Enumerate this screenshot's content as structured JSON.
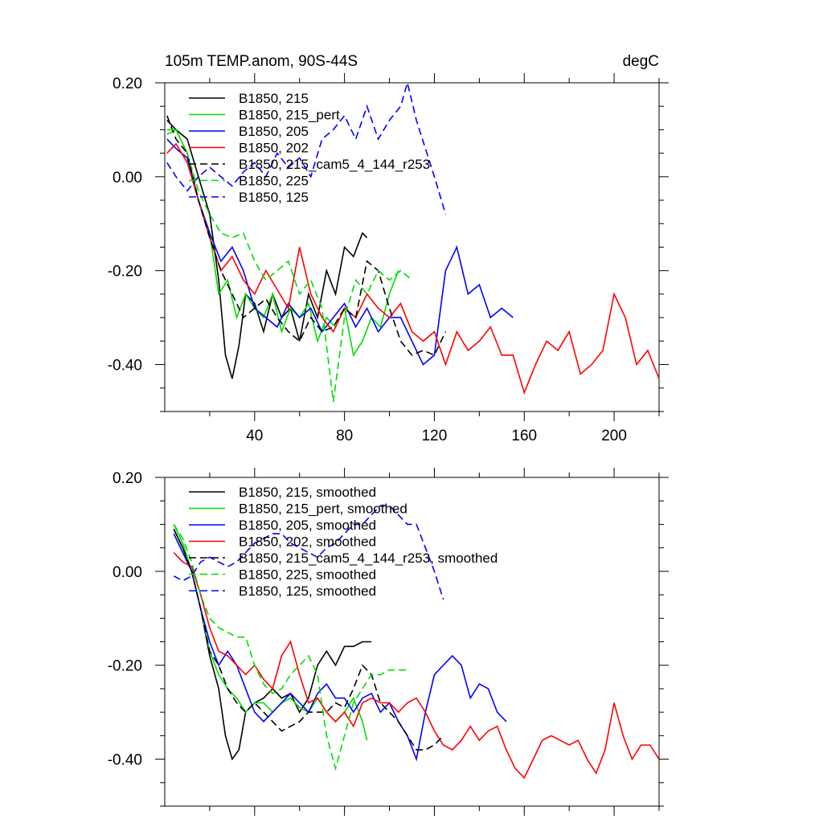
{
  "chart_data": [
    {
      "type": "line",
      "title": "105m TEMP.anom, 90S-44S",
      "units": "degC",
      "xlim": [
        0,
        220
      ],
      "ylim": [
        -0.5,
        0.2
      ],
      "xticks": [
        40,
        80,
        120,
        160,
        200
      ],
      "xtick_labels": [
        "40",
        "80",
        "120",
        "160",
        "200"
      ],
      "yticks": [
        0.2,
        0.0,
        -0.2,
        -0.4
      ],
      "ytick_labels": [
        "0.20",
        "0.00",
        "-0.20",
        "-0.40"
      ],
      "legend_position": "top-left",
      "series": [
        {
          "name": "B1850, 215",
          "color": "#000000",
          "dash": "solid",
          "x": [
            1,
            5,
            10,
            15,
            20,
            24,
            27,
            30,
            33,
            36,
            40,
            44,
            48,
            52,
            56,
            60,
            64,
            68,
            72,
            76,
            80,
            84,
            88,
            90
          ],
          "y": [
            0.12,
            0.1,
            0.08,
            0.0,
            -0.08,
            -0.22,
            -0.38,
            -0.43,
            -0.36,
            -0.25,
            -0.27,
            -0.33,
            -0.25,
            -0.3,
            -0.28,
            -0.35,
            -0.25,
            -0.3,
            -0.2,
            -0.25,
            -0.15,
            -0.17,
            -0.12,
            -0.13
          ]
        },
        {
          "name": "B1850, 215_pert",
          "color": "#00dd00",
          "dash": "solid",
          "x": [
            1,
            5,
            10,
            15,
            20,
            24,
            28,
            32,
            36,
            40,
            44,
            48,
            52,
            56,
            60,
            64,
            68,
            72,
            76,
            80,
            84,
            88,
            92,
            96,
            100,
            104
          ],
          "y": [
            0.09,
            0.1,
            0.05,
            -0.05,
            -0.12,
            -0.25,
            -0.22,
            -0.3,
            -0.25,
            -0.28,
            -0.3,
            -0.25,
            -0.33,
            -0.28,
            -0.3,
            -0.27,
            -0.35,
            -0.3,
            -0.32,
            -0.28,
            -0.38,
            -0.35,
            -0.3,
            -0.32,
            -0.25,
            -0.2
          ]
        },
        {
          "name": "B1850, 205",
          "color": "#0000ff",
          "dash": "solid",
          "x": [
            1,
            5,
            10,
            15,
            20,
            25,
            30,
            35,
            40,
            45,
            50,
            55,
            60,
            65,
            70,
            75,
            80,
            85,
            90,
            95,
            100,
            105,
            110,
            115,
            120,
            125,
            130,
            135,
            140,
            145,
            150,
            155
          ],
          "y": [
            0.08,
            0.06,
            0.04,
            -0.05,
            -0.12,
            -0.18,
            -0.15,
            -0.2,
            -0.28,
            -0.3,
            -0.32,
            -0.27,
            -0.3,
            -0.28,
            -0.33,
            -0.3,
            -0.27,
            -0.32,
            -0.28,
            -0.33,
            -0.3,
            -0.3,
            -0.35,
            -0.4,
            -0.38,
            -0.2,
            -0.15,
            -0.25,
            -0.23,
            -0.3,
            -0.28,
            -0.3
          ]
        },
        {
          "name": "B1850, 202",
          "color": "#ff0000",
          "dash": "solid",
          "x": [
            1,
            5,
            10,
            15,
            20,
            25,
            30,
            35,
            40,
            45,
            50,
            55,
            60,
            65,
            70,
            75,
            80,
            85,
            90,
            95,
            100,
            105,
            110,
            115,
            120,
            125,
            130,
            135,
            140,
            145,
            150,
            155,
            160,
            165,
            170,
            175,
            180,
            185,
            190,
            195,
            200,
            205,
            210,
            215,
            220
          ],
          "y": [
            0.05,
            0.07,
            0.03,
            -0.05,
            -0.13,
            -0.2,
            -0.17,
            -0.22,
            -0.25,
            -0.2,
            -0.24,
            -0.28,
            -0.15,
            -0.25,
            -0.3,
            -0.33,
            -0.28,
            -0.3,
            -0.25,
            -0.28,
            -0.3,
            -0.27,
            -0.33,
            -0.35,
            -0.33,
            -0.4,
            -0.33,
            -0.37,
            -0.35,
            -0.32,
            -0.38,
            -0.38,
            -0.46,
            -0.4,
            -0.35,
            -0.37,
            -0.33,
            -0.42,
            -0.4,
            -0.37,
            -0.25,
            -0.3,
            -0.4,
            -0.37,
            -0.43
          ]
        },
        {
          "name": "B1850, 215_cam5_4_144_r253",
          "color": "#000000",
          "dash": "dashed",
          "x": [
            1,
            5,
            10,
            15,
            20,
            25,
            30,
            35,
            40,
            45,
            50,
            55,
            60,
            65,
            70,
            75,
            80,
            85,
            90,
            95,
            100,
            105,
            110,
            115,
            120,
            125
          ],
          "y": [
            0.13,
            0.08,
            0.05,
            -0.05,
            -0.13,
            -0.2,
            -0.25,
            -0.3,
            -0.28,
            -0.26,
            -0.3,
            -0.33,
            -0.35,
            -0.3,
            -0.33,
            -0.32,
            -0.28,
            -0.3,
            -0.18,
            -0.2,
            -0.28,
            -0.35,
            -0.38,
            -0.37,
            -0.38,
            -0.33
          ]
        },
        {
          "name": "B1850, 225",
          "color": "#00dd00",
          "dash": "dashed",
          "x": [
            1,
            5,
            10,
            15,
            20,
            25,
            30,
            35,
            40,
            45,
            50,
            55,
            60,
            65,
            70,
            75,
            80,
            85,
            90,
            95,
            100,
            105,
            110
          ],
          "y": [
            0.1,
            0.1,
            0.05,
            -0.03,
            -0.08,
            -0.12,
            -0.13,
            -0.12,
            -0.18,
            -0.22,
            -0.2,
            -0.18,
            -0.25,
            -0.22,
            -0.28,
            -0.48,
            -0.3,
            -0.22,
            -0.25,
            -0.2,
            -0.22,
            -0.2,
            -0.22
          ]
        },
        {
          "name": "B1850, 125",
          "color": "#0000ff",
          "dash": "dashed",
          "x": [
            1,
            5,
            10,
            15,
            20,
            25,
            30,
            35,
            40,
            45,
            50,
            55,
            60,
            65,
            70,
            75,
            80,
            85,
            90,
            95,
            100,
            105,
            108,
            112,
            116,
            120,
            125
          ],
          "y": [
            0.03,
            0.0,
            -0.03,
            0.0,
            0.02,
            0.0,
            -0.02,
            0.01,
            0.03,
            0.0,
            0.05,
            0.02,
            0.04,
            0.0,
            0.08,
            0.1,
            0.13,
            0.08,
            0.15,
            0.08,
            0.12,
            0.15,
            0.2,
            0.12,
            0.06,
            0.0,
            -0.08
          ]
        }
      ]
    },
    {
      "type": "line",
      "xlim": [
        0,
        220
      ],
      "ylim": [
        -0.5,
        0.2
      ],
      "xticks": [
        40,
        80,
        120,
        160,
        200
      ],
      "yticks": [
        0.2,
        0.0,
        -0.2,
        -0.4
      ],
      "ytick_labels": [
        "0.20",
        "0.00",
        "-0.20",
        "-0.40"
      ],
      "legend_position": "top-left",
      "series": [
        {
          "name": "B1850, 215, smoothed",
          "color": "#000000",
          "dash": "solid",
          "x": [
            4,
            8,
            12,
            16,
            20,
            24,
            27,
            30,
            33,
            36,
            40,
            44,
            48,
            52,
            56,
            60,
            64,
            68,
            72,
            76,
            80,
            84,
            88,
            92
          ],
          "y": [
            0.09,
            0.05,
            0.0,
            -0.08,
            -0.18,
            -0.25,
            -0.35,
            -0.4,
            -0.38,
            -0.3,
            -0.28,
            -0.27,
            -0.25,
            -0.27,
            -0.26,
            -0.3,
            -0.27,
            -0.2,
            -0.17,
            -0.2,
            -0.16,
            -0.16,
            -0.15,
            -0.15
          ]
        },
        {
          "name": "B1850, 215_pert, smoothed",
          "color": "#00dd00",
          "dash": "solid",
          "x": [
            4,
            8,
            12,
            16,
            20,
            24,
            28,
            32,
            36,
            40,
            44,
            48,
            52,
            56,
            60,
            64,
            68,
            72,
            76,
            80,
            84,
            88,
            90
          ],
          "y": [
            0.1,
            0.06,
            0.0,
            -0.08,
            -0.17,
            -0.22,
            -0.25,
            -0.27,
            -0.3,
            -0.28,
            -0.28,
            -0.3,
            -0.28,
            -0.27,
            -0.29,
            -0.3,
            -0.27,
            -0.3,
            -0.32,
            -0.3,
            -0.27,
            -0.32,
            -0.36
          ]
        },
        {
          "name": "B1850, 205, smoothed",
          "color": "#0000ff",
          "dash": "solid",
          "x": [
            4,
            8,
            12,
            16,
            20,
            24,
            28,
            32,
            36,
            40,
            44,
            48,
            52,
            56,
            60,
            64,
            68,
            72,
            76,
            80,
            84,
            88,
            92,
            96,
            100,
            104,
            108,
            112,
            116,
            120,
            124,
            128,
            132,
            136,
            140,
            144,
            148,
            152
          ],
          "y": [
            0.08,
            0.04,
            0.0,
            -0.08,
            -0.15,
            -0.2,
            -0.17,
            -0.2,
            -0.25,
            -0.3,
            -0.32,
            -0.3,
            -0.28,
            -0.26,
            -0.28,
            -0.3,
            -0.26,
            -0.24,
            -0.27,
            -0.27,
            -0.3,
            -0.27,
            -0.26,
            -0.3,
            -0.28,
            -0.32,
            -0.35,
            -0.4,
            -0.3,
            -0.22,
            -0.2,
            -0.18,
            -0.2,
            -0.27,
            -0.24,
            -0.25,
            -0.3,
            -0.32
          ]
        },
        {
          "name": "B1850, 202, smoothed",
          "color": "#ff0000",
          "dash": "solid",
          "x": [
            4,
            8,
            12,
            16,
            20,
            24,
            28,
            32,
            36,
            40,
            44,
            48,
            52,
            56,
            60,
            64,
            68,
            72,
            76,
            80,
            84,
            88,
            92,
            96,
            100,
            104,
            108,
            112,
            116,
            120,
            124,
            128,
            132,
            136,
            140,
            144,
            148,
            152,
            156,
            160,
            164,
            168,
            172,
            176,
            180,
            184,
            188,
            192,
            196,
            200,
            204,
            208,
            212,
            216,
            220
          ],
          "y": [
            0.04,
            0.02,
            0.01,
            -0.05,
            -0.12,
            -0.17,
            -0.18,
            -0.2,
            -0.22,
            -0.2,
            -0.23,
            -0.25,
            -0.18,
            -0.15,
            -0.22,
            -0.28,
            -0.27,
            -0.3,
            -0.32,
            -0.3,
            -0.33,
            -0.28,
            -0.27,
            -0.28,
            -0.28,
            -0.3,
            -0.28,
            -0.27,
            -0.3,
            -0.34,
            -0.37,
            -0.38,
            -0.36,
            -0.33,
            -0.36,
            -0.34,
            -0.33,
            -0.38,
            -0.42,
            -0.44,
            -0.4,
            -0.36,
            -0.35,
            -0.36,
            -0.37,
            -0.36,
            -0.4,
            -0.43,
            -0.38,
            -0.28,
            -0.35,
            -0.4,
            -0.37,
            -0.37,
            -0.4
          ]
        },
        {
          "name": "B1850, 215_cam5_4_144_r253, smoothed",
          "color": "#000000",
          "dash": "dashed",
          "x": [
            4,
            8,
            12,
            16,
            20,
            24,
            28,
            32,
            36,
            40,
            44,
            48,
            52,
            56,
            60,
            64,
            68,
            72,
            76,
            80,
            84,
            88,
            92,
            96,
            100,
            104,
            108,
            112,
            116,
            120,
            124
          ],
          "y": [
            0.09,
            0.05,
            0.0,
            -0.08,
            -0.17,
            -0.2,
            -0.25,
            -0.28,
            -0.3,
            -0.28,
            -0.3,
            -0.32,
            -0.34,
            -0.33,
            -0.32,
            -0.3,
            -0.3,
            -0.3,
            -0.28,
            -0.29,
            -0.25,
            -0.2,
            -0.22,
            -0.28,
            -0.3,
            -0.32,
            -0.35,
            -0.38,
            -0.38,
            -0.37,
            -0.35
          ]
        },
        {
          "name": "B1850, 225, smoothed",
          "color": "#00dd00",
          "dash": "dashed",
          "x": [
            4,
            8,
            12,
            16,
            20,
            24,
            28,
            32,
            36,
            40,
            44,
            48,
            52,
            56,
            60,
            64,
            68,
            72,
            76,
            80,
            84,
            88,
            92,
            96,
            100,
            104,
            108
          ],
          "y": [
            0.1,
            0.07,
            0.02,
            -0.05,
            -0.1,
            -0.12,
            -0.13,
            -0.14,
            -0.14,
            -0.2,
            -0.24,
            -0.26,
            -0.25,
            -0.22,
            -0.2,
            -0.18,
            -0.22,
            -0.35,
            -0.42,
            -0.35,
            -0.28,
            -0.25,
            -0.22,
            -0.22,
            -0.21,
            -0.21,
            -0.21
          ]
        },
        {
          "name": "B1850, 125, smoothed",
          "color": "#0000ff",
          "dash": "dashed",
          "x": [
            4,
            8,
            12,
            16,
            20,
            24,
            28,
            32,
            36,
            40,
            44,
            48,
            52,
            56,
            60,
            64,
            68,
            72,
            76,
            80,
            84,
            88,
            92,
            96,
            100,
            104,
            108,
            112,
            116,
            120,
            124
          ],
          "y": [
            -0.01,
            -0.02,
            -0.01,
            0.02,
            0.03,
            0.02,
            0.01,
            0.02,
            0.04,
            0.06,
            0.07,
            0.08,
            0.08,
            0.06,
            0.05,
            0.04,
            0.03,
            0.05,
            0.06,
            0.08,
            0.1,
            0.1,
            0.12,
            0.14,
            0.14,
            0.12,
            0.1,
            0.1,
            0.05,
            0.0,
            -0.06
          ]
        }
      ]
    }
  ]
}
